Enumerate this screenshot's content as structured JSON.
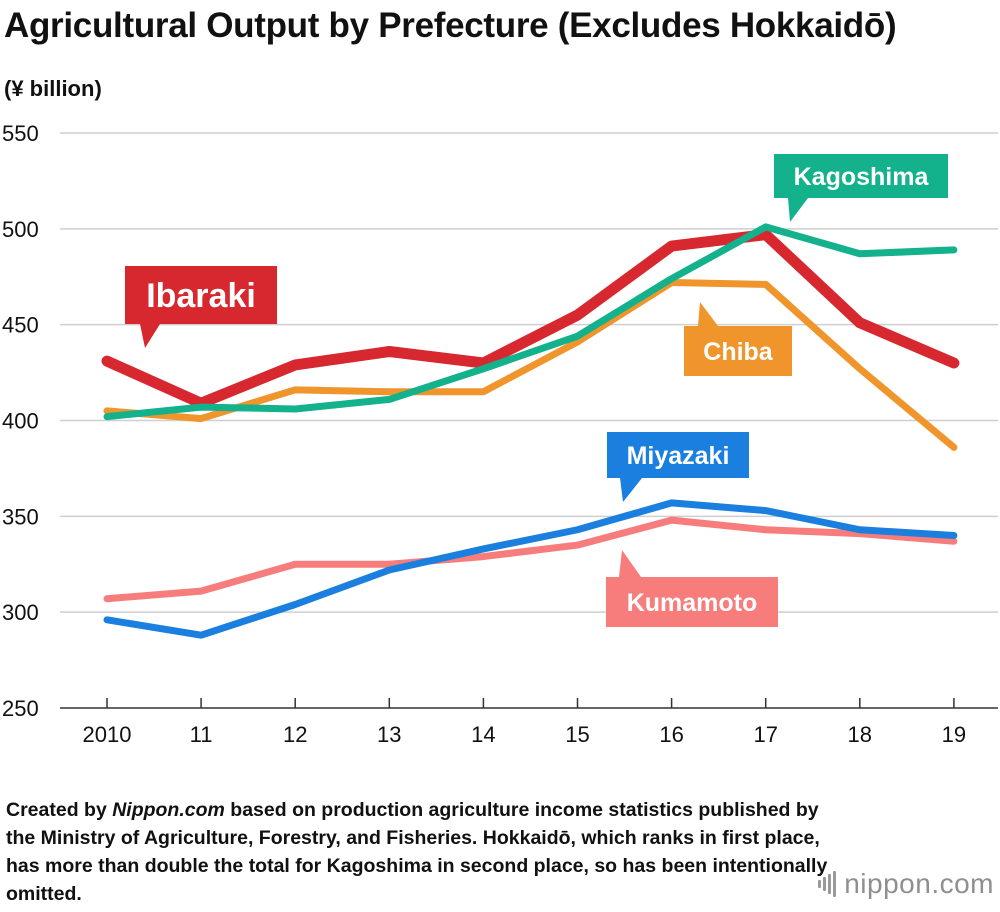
{
  "page": {
    "title": "Agricultural Output by Prefecture (Excludes Hokkaidō)",
    "footnote": {
      "prefix": "Created by ",
      "source_name": "Nippon.com",
      "suffix": " based on production agriculture income statistics published by the Ministry of Agriculture, Forestry, and Fisheries. Hokkaidō, which ranks in first place, has more than double the total for Kagoshima in second place, so has been intentionally omitted."
    },
    "brand": "nippon.com"
  },
  "chart_data": {
    "type": "line",
    "title": "Agricultural Output by Prefecture (Excludes Hokkaidō)",
    "ylabel": "(¥ billion)",
    "xlabel": "",
    "ylim": [
      250,
      550
    ],
    "yticks": [
      250,
      300,
      350,
      400,
      450,
      500,
      550
    ],
    "categories": [
      "2010",
      "11",
      "12",
      "13",
      "14",
      "15",
      "16",
      "17",
      "18",
      "19"
    ],
    "grid": "horizontal",
    "legend": "inline callouts",
    "series": [
      {
        "name": "Ibaraki",
        "color": "#d7282f",
        "values": [
          431,
          409,
          429,
          436,
          430,
          455,
          491,
          497,
          451,
          430
        ]
      },
      {
        "name": "Chiba",
        "color": "#f0952c",
        "values": [
          405,
          401,
          416,
          415,
          415,
          441,
          472,
          471,
          427,
          386
        ]
      },
      {
        "name": "Kagoshima",
        "color": "#13b18c",
        "values": [
          402,
          407,
          406,
          411,
          427,
          444,
          474,
          501,
          487,
          489
        ]
      },
      {
        "name": "Miyazaki",
        "color": "#1a7fde",
        "values": [
          296,
          288,
          304,
          322,
          333,
          343,
          357,
          353,
          343,
          340
        ]
      },
      {
        "name": "Kumamoto",
        "color": "#f77d7c",
        "values": [
          307,
          311,
          325,
          325,
          329,
          335,
          348,
          343,
          341,
          337
        ]
      }
    ]
  }
}
